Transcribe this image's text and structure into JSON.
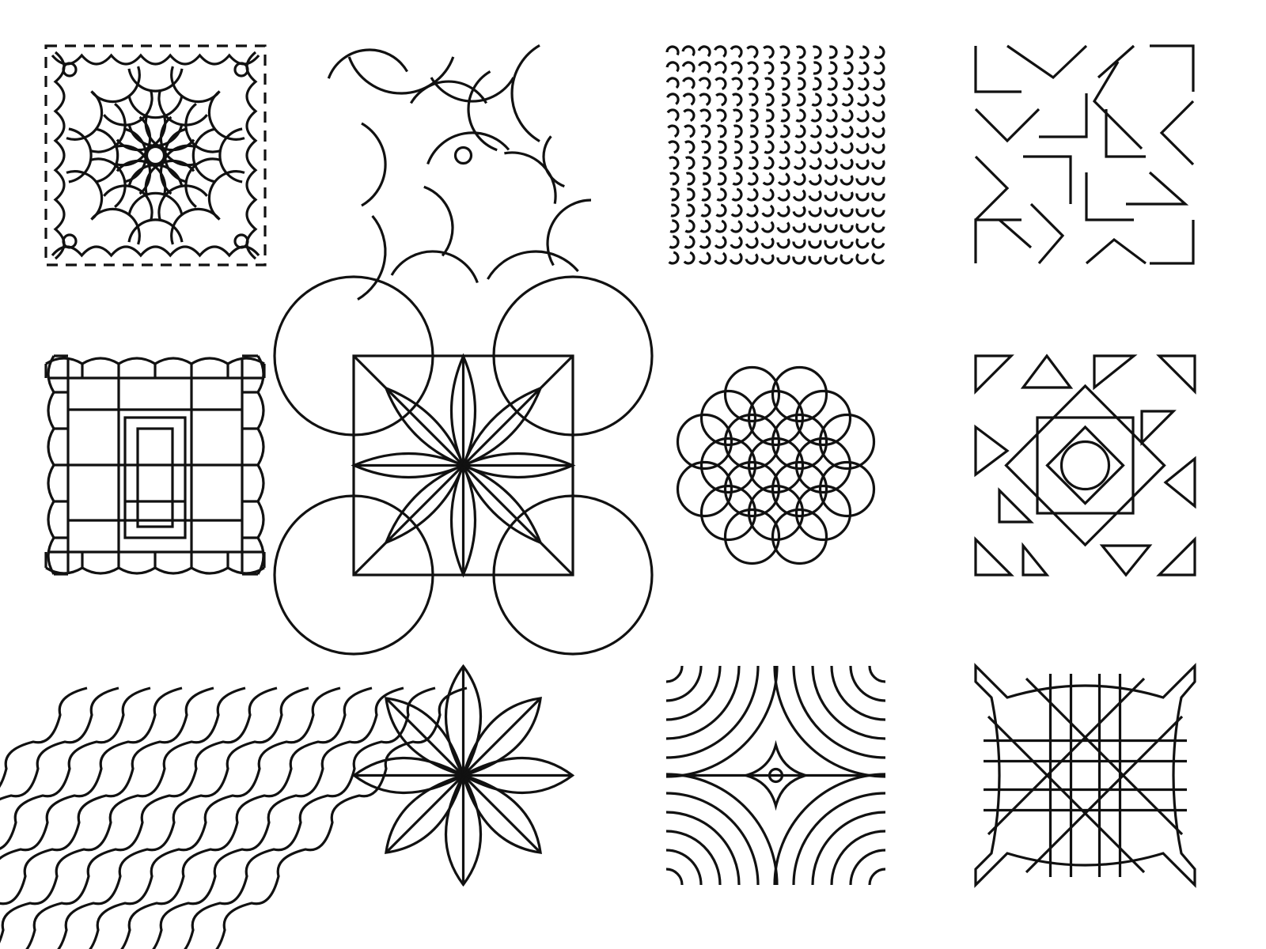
{
  "sheet": {
    "background": "#ffffff",
    "stroke_color": "#111111",
    "rows": 3,
    "columns": 4
  },
  "tiles": [
    {
      "name": "scalloped-frame-tile",
      "icon": "scalloped-frame-icon"
    },
    {
      "name": "scattered-arcs-tile",
      "icon": "scattered-arcs-icon"
    },
    {
      "name": "dense-hooks-tile",
      "icon": "dense-hooks-icon"
    },
    {
      "name": "chevron-corners-tile",
      "icon": "chevron-corners-icon"
    },
    {
      "name": "wavy-grid-tile",
      "icon": "wavy-grid-icon"
    },
    {
      "name": "eight-petal-lens-tile",
      "icon": "eight-petal-lens-icon"
    },
    {
      "name": "interlaced-circles-diamond-tile",
      "icon": "interlaced-circles-icon"
    },
    {
      "name": "triangles-square-circle-tile",
      "icon": "triangles-square-circle-icon"
    },
    {
      "name": "diagonal-waves-tile",
      "icon": "diagonal-waves-icon"
    },
    {
      "name": "lotus-flower-tile",
      "icon": "lotus-flower-icon"
    },
    {
      "name": "concentric-quarter-arcs-tile",
      "icon": "concentric-arcs-icon"
    },
    {
      "name": "woven-knot-tile",
      "icon": "woven-knot-icon"
    }
  ]
}
